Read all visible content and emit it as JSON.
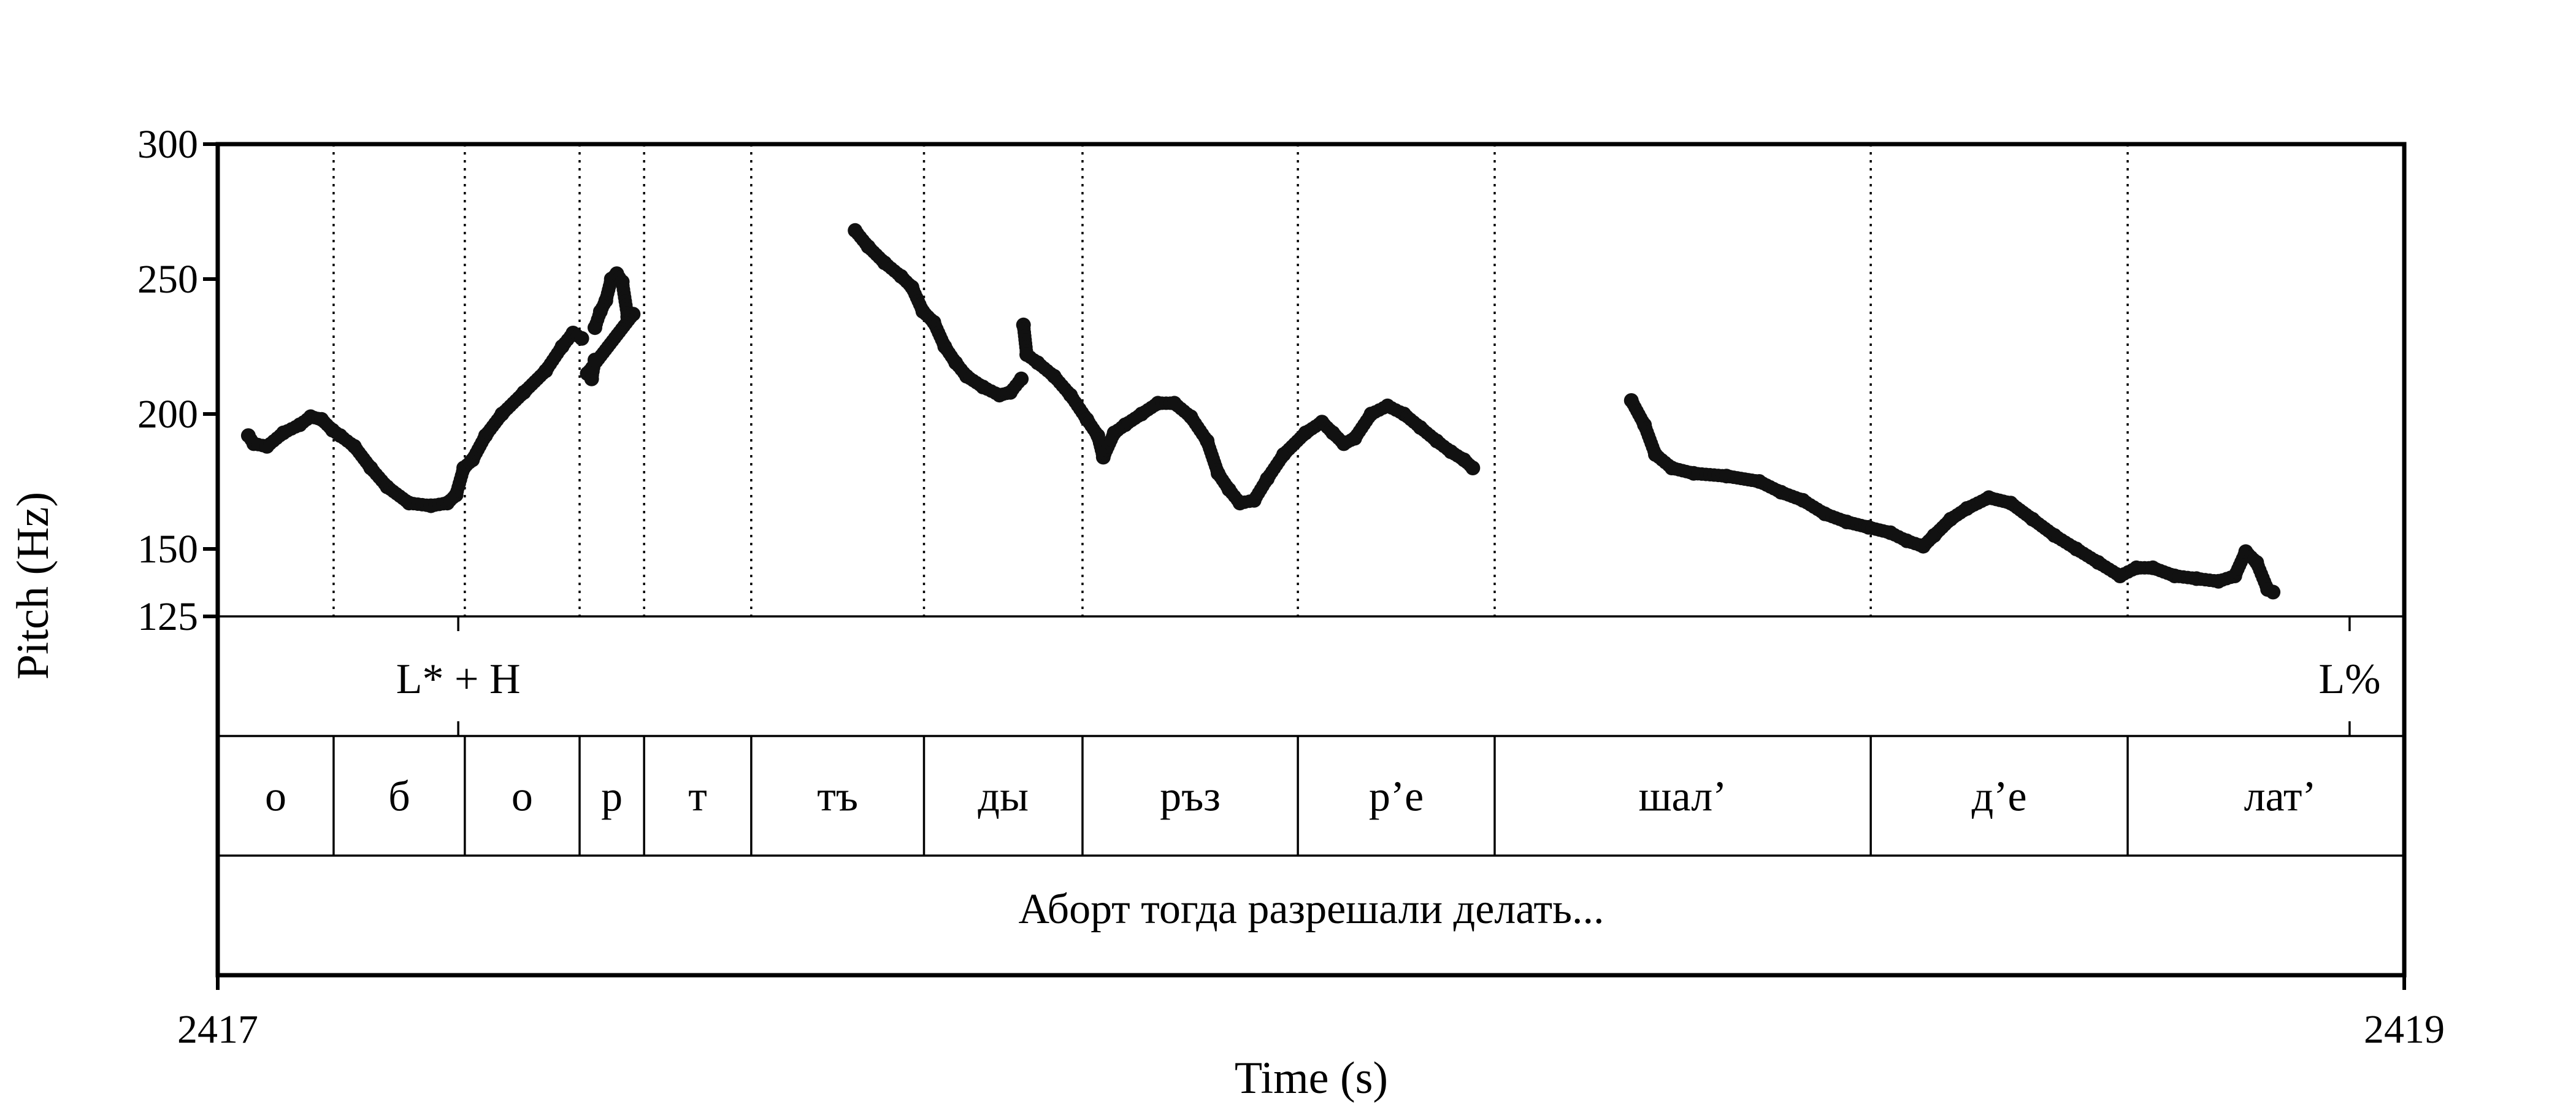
{
  "chart_data": {
    "type": "scatter",
    "ylabel": "Pitch (Hz)",
    "xlabel": "Time (s)",
    "xlim": [
      2417,
      2419
    ],
    "ylim": [
      125,
      300
    ],
    "yticks": [
      125,
      150,
      200,
      250,
      300
    ],
    "x_tick_labels": [
      "2417",
      "2419"
    ],
    "y_tick_labels": [
      "125",
      "150",
      "200",
      "250",
      "300"
    ],
    "tone_tier": [
      {
        "time": 2417.22,
        "label": "L* + H"
      },
      {
        "time": 2418.95,
        "label": "L%"
      }
    ],
    "segment_boundaries": [
      2417.106,
      2417.226,
      2417.331,
      2417.39,
      2417.488,
      2417.646,
      2417.791,
      2417.988,
      2418.168,
      2418.512,
      2418.747,
      2419.0
    ],
    "syllables": [
      {
        "start": 2417.0,
        "end": 2417.106,
        "label": "о"
      },
      {
        "start": 2417.106,
        "end": 2417.226,
        "label": "б"
      },
      {
        "start": 2417.226,
        "end": 2417.331,
        "label": "о"
      },
      {
        "start": 2417.331,
        "end": 2417.39,
        "label": "р"
      },
      {
        "start": 2417.39,
        "end": 2417.488,
        "label": "т"
      },
      {
        "start": 2417.488,
        "end": 2417.646,
        "label": "тъ"
      },
      {
        "start": 2417.646,
        "end": 2417.791,
        "label": "ды"
      },
      {
        "start": 2417.791,
        "end": 2417.988,
        "label": "ръз"
      },
      {
        "start": 2417.988,
        "end": 2418.168,
        "label": "р’е"
      },
      {
        "start": 2418.168,
        "end": 2418.512,
        "label": "шал’"
      },
      {
        "start": 2418.512,
        "end": 2418.747,
        "label": "д’е"
      },
      {
        "start": 2418.747,
        "end": 2419.026,
        "label": "лат’"
      }
    ],
    "utterance": "Аборт тогда разрешали делать...",
    "pitch_contours": [
      [
        [
          2417.028,
          192
        ],
        [
          2417.033,
          189
        ],
        [
          2417.045,
          188
        ],
        [
          2417.06,
          193
        ],
        [
          2417.075,
          196
        ],
        [
          2417.085,
          199
        ],
        [
          2417.095,
          198
        ],
        [
          2417.105,
          194
        ],
        [
          2417.112,
          192
        ],
        [
          2417.125,
          188
        ],
        [
          2417.14,
          180
        ],
        [
          2417.155,
          173
        ],
        [
          2417.175,
          167
        ],
        [
          2417.195,
          166
        ],
        [
          2417.21,
          167
        ],
        [
          2417.218,
          170
        ],
        [
          2417.225,
          180
        ],
        [
          2417.233,
          183
        ],
        [
          2417.245,
          192
        ],
        [
          2417.26,
          200
        ],
        [
          2417.28,
          208
        ],
        [
          2417.3,
          216
        ],
        [
          2417.315,
          225
        ],
        [
          2417.325,
          230
        ],
        [
          2417.333,
          228
        ]
      ],
      [
        [
          2417.345,
          232
        ],
        [
          2417.35,
          238
        ],
        [
          2417.355,
          242
        ],
        [
          2417.36,
          250
        ],
        [
          2417.365,
          252
        ],
        [
          2417.37,
          249
        ],
        [
          2417.375,
          236
        ],
        [
          2417.38,
          237
        ],
        [
          2417.338,
          215
        ],
        [
          2417.342,
          213
        ],
        [
          2417.345,
          220
        ]
      ],
      [
        [
          2417.583,
          268
        ],
        [
          2417.595,
          262
        ],
        [
          2417.61,
          256
        ],
        [
          2417.625,
          251
        ],
        [
          2417.635,
          247
        ],
        [
          2417.645,
          238
        ],
        [
          2417.655,
          234
        ],
        [
          2417.665,
          225
        ],
        [
          2417.675,
          219
        ],
        [
          2417.685,
          214
        ],
        [
          2417.7,
          210
        ],
        [
          2417.715,
          207
        ],
        [
          2417.725,
          208
        ],
        [
          2417.735,
          213
        ]
      ],
      [
        [
          2417.737,
          233
        ],
        [
          2417.74,
          222
        ],
        [
          2417.75,
          219
        ],
        [
          2417.765,
          214
        ],
        [
          2417.78,
          207
        ],
        [
          2417.795,
          198
        ],
        [
          2417.805,
          192
        ],
        [
          2417.81,
          184
        ],
        [
          2417.82,
          193
        ],
        [
          2417.83,
          196
        ],
        [
          2417.845,
          200
        ],
        [
          2417.86,
          204
        ],
        [
          2417.875,
          204
        ],
        [
          2417.89,
          199
        ],
        [
          2417.905,
          190
        ],
        [
          2417.915,
          178
        ],
        [
          2417.925,
          172
        ],
        [
          2417.935,
          167
        ],
        [
          2417.948,
          168
        ],
        [
          2417.96,
          176
        ],
        [
          2417.975,
          185
        ],
        [
          2417.995,
          193
        ],
        [
          2418.01,
          197
        ],
        [
          2418.02,
          193
        ],
        [
          2418.03,
          189
        ],
        [
          2418.04,
          191
        ],
        [
          2418.055,
          200
        ],
        [
          2418.07,
          203
        ],
        [
          2418.085,
          200
        ],
        [
          2418.1,
          195
        ],
        [
          2418.115,
          190
        ],
        [
          2418.128,
          186
        ],
        [
          2418.14,
          183
        ],
        [
          2418.148,
          180
        ]
      ],
      [
        [
          2418.293,
          205
        ],
        [
          2418.305,
          196
        ],
        [
          2418.315,
          185
        ],
        [
          2418.33,
          180
        ],
        [
          2418.35,
          178
        ],
        [
          2418.38,
          177
        ],
        [
          2418.41,
          175
        ],
        [
          2418.43,
          171
        ],
        [
          2418.45,
          168
        ],
        [
          2418.47,
          163
        ],
        [
          2418.49,
          160
        ],
        [
          2418.51,
          158
        ],
        [
          2418.53,
          156
        ],
        [
          2418.545,
          153
        ],
        [
          2418.56,
          151
        ],
        [
          2418.57,
          155
        ],
        [
          2418.585,
          161
        ],
        [
          2418.6,
          165
        ],
        [
          2418.62,
          169
        ],
        [
          2418.64,
          167
        ],
        [
          2418.66,
          161
        ],
        [
          2418.68,
          155
        ],
        [
          2418.7,
          150
        ],
        [
          2418.72,
          145
        ],
        [
          2418.74,
          140
        ],
        [
          2418.755,
          143
        ],
        [
          2418.77,
          143
        ],
        [
          2418.79,
          140
        ],
        [
          2418.81,
          139
        ],
        [
          2418.83,
          138
        ],
        [
          2418.845,
          140
        ],
        [
          2418.855,
          149
        ],
        [
          2418.865,
          145
        ],
        [
          2418.875,
          135
        ],
        [
          2418.88,
          134
        ]
      ]
    ]
  }
}
